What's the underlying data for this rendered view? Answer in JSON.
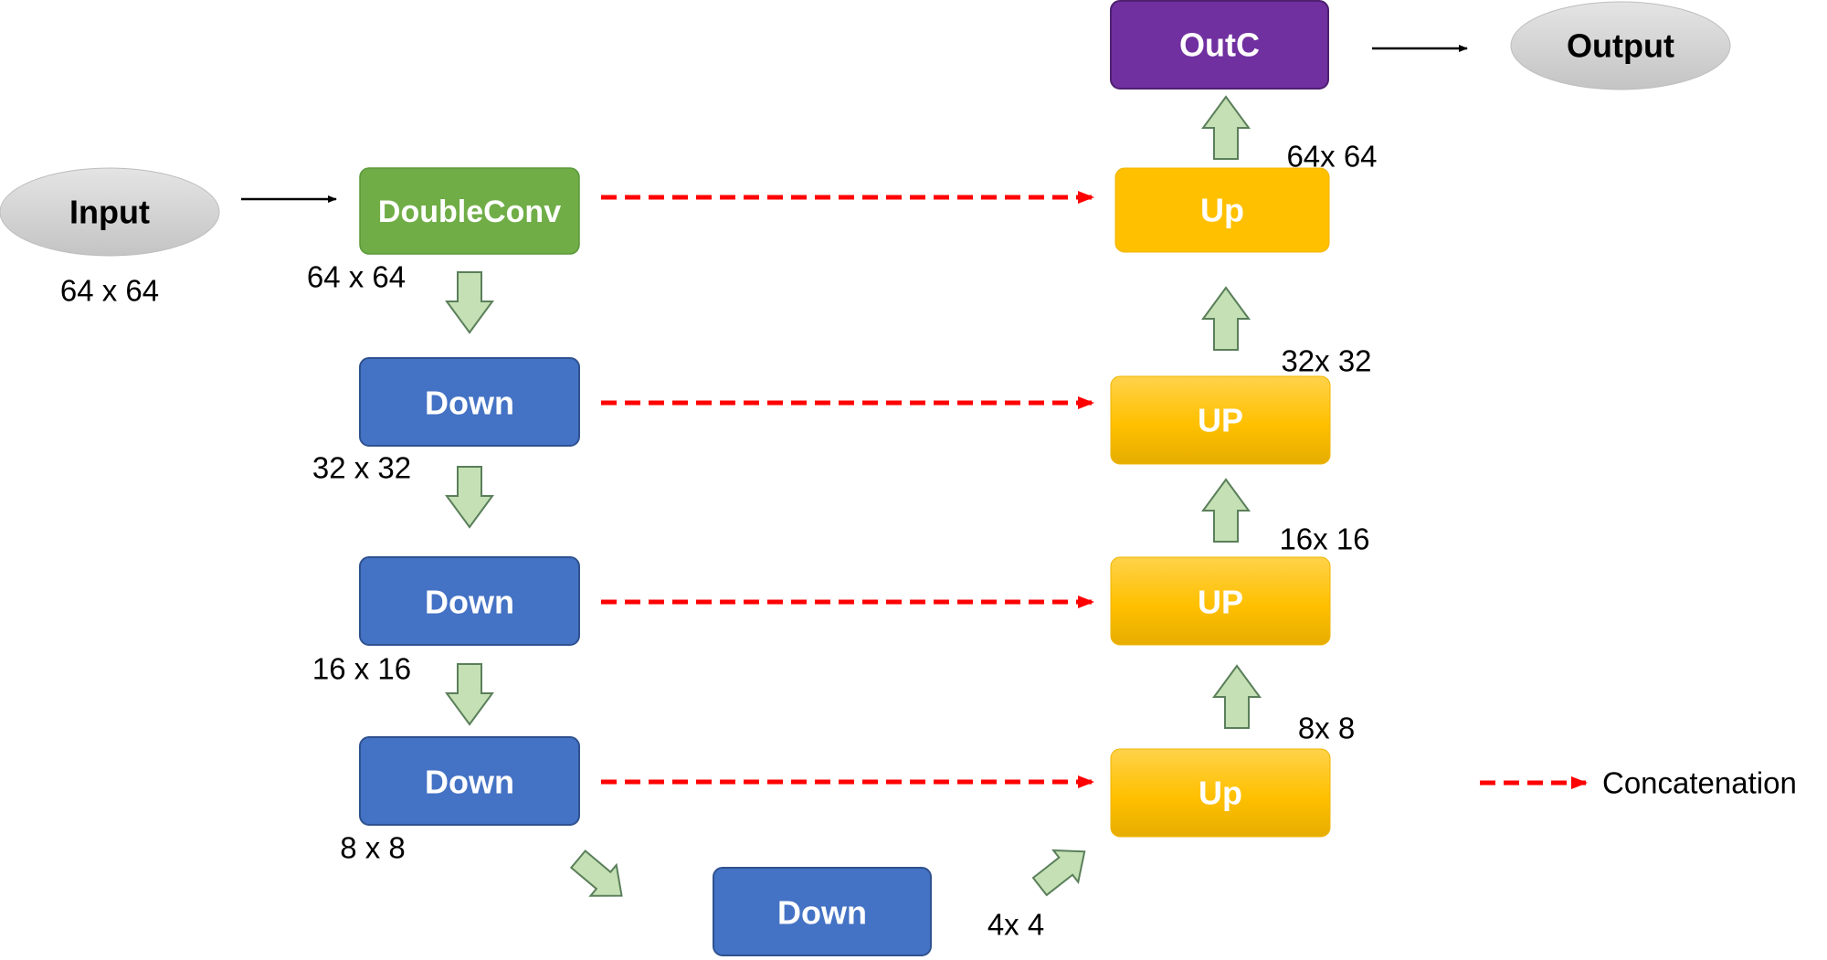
{
  "nodes": {
    "input": {
      "label": "Input",
      "color": "#d6d6d6"
    },
    "doubleconv": {
      "label": "DoubleConv",
      "color": "#70ad47"
    },
    "down1": {
      "label": "Down",
      "color": "#4472c4"
    },
    "down2": {
      "label": "Down",
      "color": "#4472c4"
    },
    "down3": {
      "label": "Down",
      "color": "#4472c4"
    },
    "down4": {
      "label": "Down",
      "color": "#4472c4"
    },
    "up1": {
      "label": "Up",
      "color": "#ffc000"
    },
    "up2": {
      "label": "UP",
      "color": "#ffc000"
    },
    "up3": {
      "label": "UP",
      "color": "#ffc000"
    },
    "up4": {
      "label": "Up",
      "color": "#ffc000"
    },
    "outc": {
      "label": "OutC",
      "color": "#7030a0"
    },
    "output": {
      "label": "Output",
      "color": "#d6d6d6"
    }
  },
  "dims": {
    "input": "64 x 64",
    "doubleconv": "64 x 64",
    "down1": "32 x 32",
    "down2": "16 x 16",
    "down3": "8 x 8",
    "down4": "4x 4",
    "up1": "64x 64",
    "up2": "32x 32",
    "up3": "16x 16",
    "up4": "8x 8"
  },
  "legend": {
    "label": "Concatenation"
  },
  "colors": {
    "skip_arrow": "#ff0000",
    "flow_arrow_fill": "#c5e0b4",
    "flow_arrow_stroke": "#5a7f5a",
    "node_text": "#ffffff",
    "ellipse_text": "#000000"
  }
}
